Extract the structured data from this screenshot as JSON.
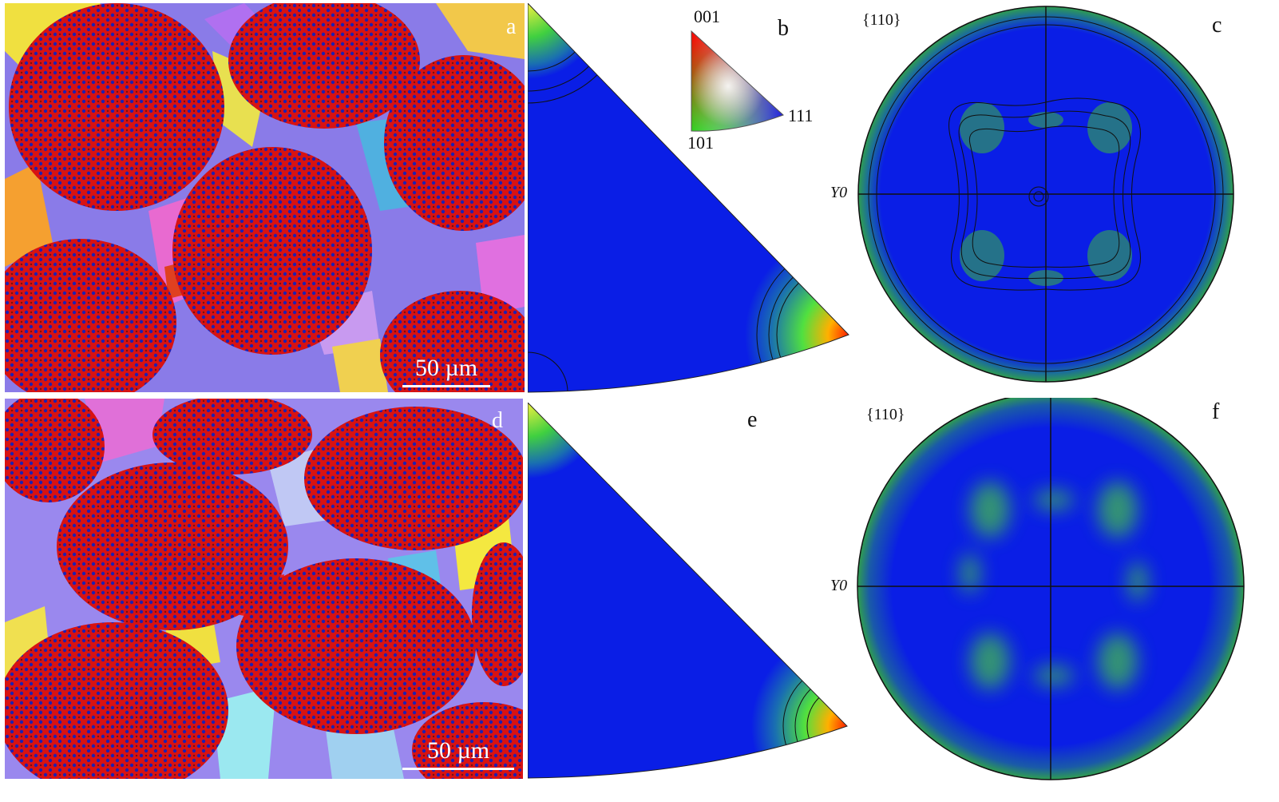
{
  "panels": {
    "a": {
      "label": "a",
      "scale_bar": "50 µm"
    },
    "b": {
      "label": "b"
    },
    "c": {
      "label": "c",
      "plane": "{110}",
      "axis_label": "Y0"
    },
    "d": {
      "label": "d",
      "scale_bar": "50 µm"
    },
    "e": {
      "label": "e"
    },
    "f": {
      "label": "f",
      "plane": "{110}",
      "axis_label": "Y0"
    }
  },
  "ipf_key": {
    "top": "001",
    "bottom_left": "101",
    "right": "111"
  },
  "colors": {
    "matrix_blue": "#1e22e6",
    "particle_red": "#e01010",
    "plot_blue": "#0a1ee6",
    "plot_green": "#2f9e4f",
    "hot_red": "#ff2000"
  }
}
